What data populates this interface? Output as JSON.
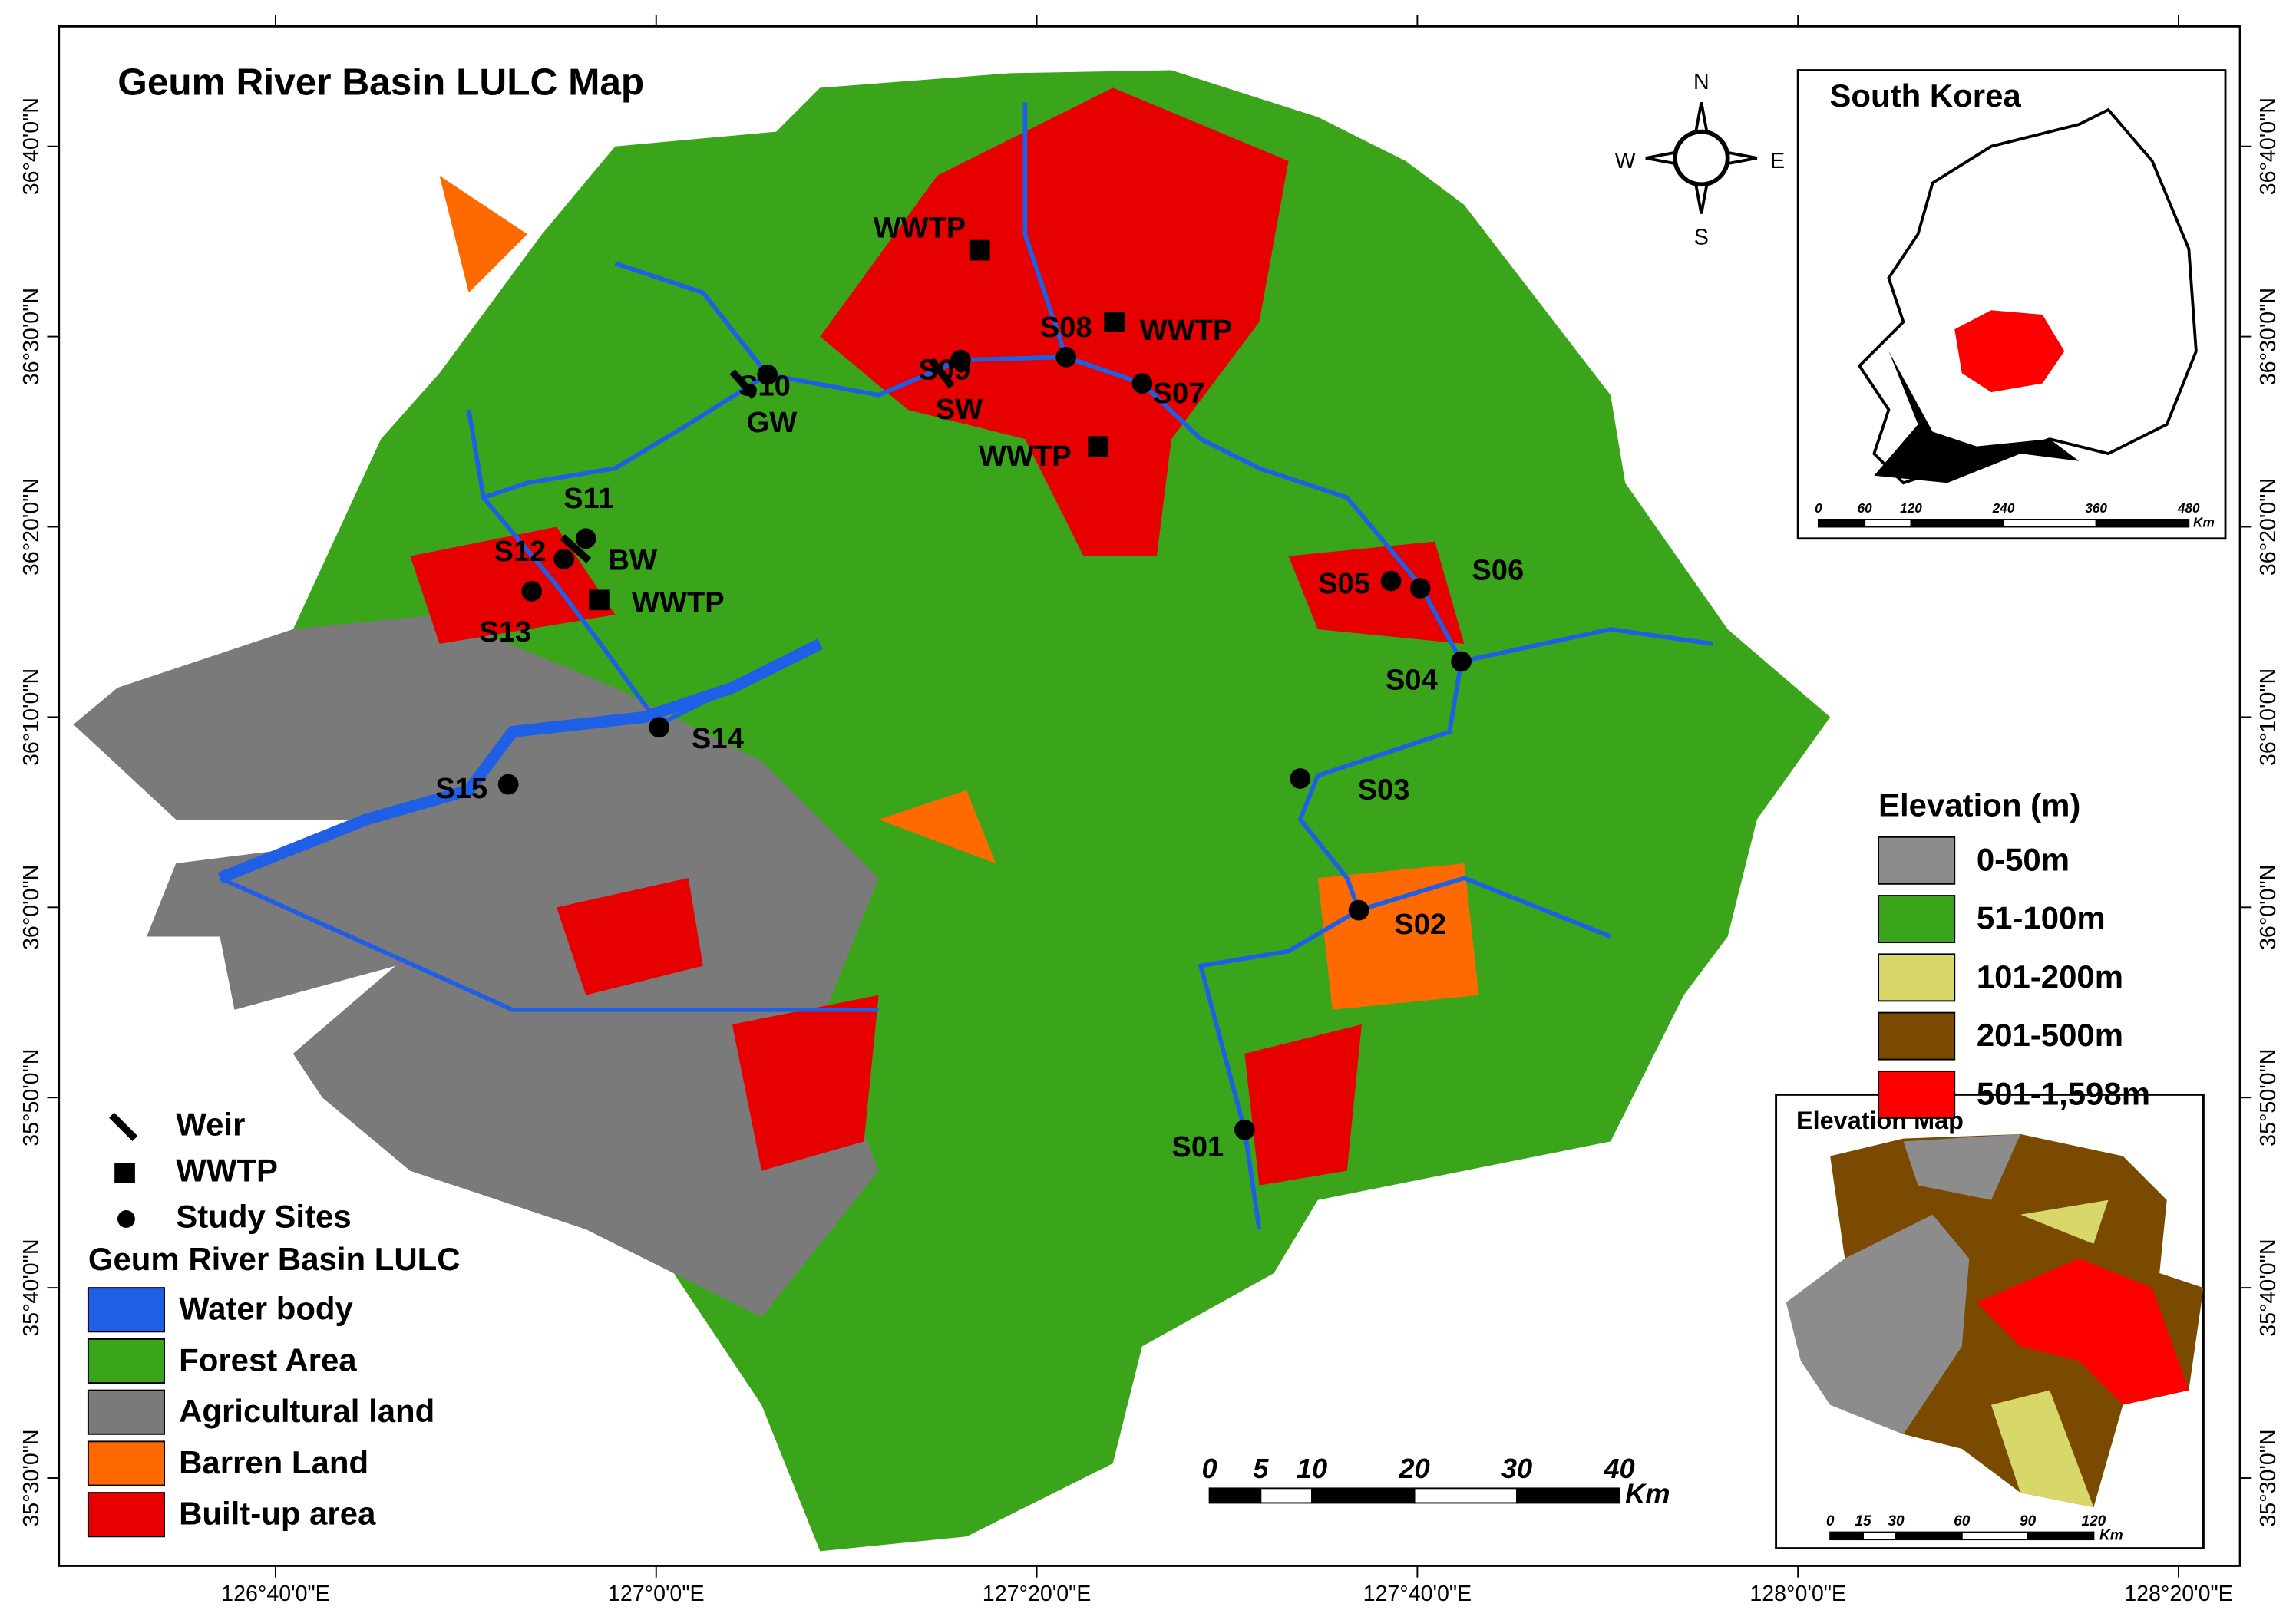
{
  "title": "Geum River Basin LULC Map",
  "graticule": {
    "longitude": [
      "126°40'0\"E",
      "127°0'0\"E",
      "127°20'0\"E",
      "127°40'0\"E",
      "128°0'0\"E",
      "128°20'0\"E"
    ],
    "latitude": [
      "36°40'0\"N",
      "36°30'0\"N",
      "36°20'0\"N",
      "36°10'0\"N",
      "36°0'0\"N",
      "35°50'0\"N",
      "35°40'0\"N",
      "35°30'0\"N"
    ]
  },
  "compass": {
    "north": "N",
    "south": "S",
    "east": "E",
    "west": "W"
  },
  "sites": [
    "S01",
    "S02",
    "S03",
    "S04",
    "S05",
    "S06",
    "S07",
    "S08",
    "S09",
    "S10",
    "S11",
    "S12",
    "S13",
    "S14",
    "S15"
  ],
  "weirs": [
    "GW",
    "SW",
    "BW"
  ],
  "wwtp_labels": [
    "WWTP",
    "WWTP",
    "WWTP",
    "WWTP"
  ],
  "legend": {
    "symbols": [
      "Weir",
      "WWTP",
      "Study Sites"
    ],
    "lulc_title": "Geum River Basin LULC",
    "lulc": [
      {
        "label": "Water body",
        "color": "#1f5fe6"
      },
      {
        "label": "Forest Area",
        "color": "#3aa51a"
      },
      {
        "label": "Agricultural land",
        "color": "#7a7a7a"
      },
      {
        "label": "Barren Land",
        "color": "#ff6a00"
      },
      {
        "label": "Built-up area",
        "color": "#e60000"
      }
    ]
  },
  "elevation_legend": {
    "title": "Elevation (m)",
    "classes": [
      {
        "label": "0-50m",
        "color": "#8c8c8c"
      },
      {
        "label": "51-100m",
        "color": "#3aa51a"
      },
      {
        "label": "101-200m",
        "color": "#d8d86a"
      },
      {
        "label": "201-500m",
        "color": "#7a4a00"
      },
      {
        "label": "501-1,598m",
        "color": "#ff0000"
      }
    ]
  },
  "scale_bar": {
    "labels": [
      0,
      5,
      10,
      20,
      30,
      40
    ],
    "unit": "Km"
  },
  "inset_korea": {
    "title": "South Korea",
    "scale": [
      0,
      60,
      120,
      240,
      360,
      480
    ],
    "unit": "Km"
  },
  "inset_elevation": {
    "title": "Elevation Map",
    "scale": [
      0,
      15,
      30,
      60,
      90,
      120
    ],
    "unit": "Km"
  }
}
